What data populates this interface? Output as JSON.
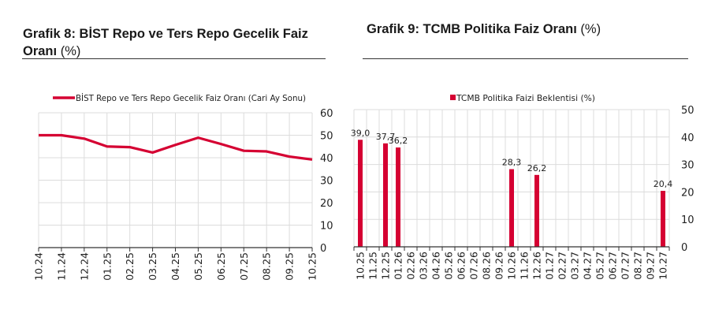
{
  "chart_data": [
    {
      "type": "line",
      "title": "Grafik 8:  BİST Repo ve Ters Repo Gecelik Faiz Oranı",
      "title_unit": "(%)",
      "legend": "BİST Repo ve Ters Repo Gecelik Faiz Oranı (Cari Ay Sonu)",
      "legend_placement": "top-center",
      "categories": [
        "10.24",
        "11.24",
        "12.24",
        "01.25",
        "02.25",
        "03.25",
        "04.25",
        "05.25",
        "06.25",
        "07.25",
        "08.25",
        "09.25",
        "10.25"
      ],
      "series": [
        {
          "name": "BİST Repo ve Ters Repo Gecelik Faiz Oranı (Cari Ay Sonu)",
          "values": [
            50.0,
            50.0,
            48.5,
            45.0,
            44.7,
            42.3,
            45.7,
            48.9,
            46.1,
            43.1,
            42.8,
            40.5,
            39.2
          ]
        }
      ],
      "ylim": [
        0,
        60
      ],
      "yticks": [
        0,
        10,
        20,
        30,
        40,
        50,
        60
      ],
      "grid": true,
      "color": "#d50032"
    },
    {
      "type": "bar",
      "title": "Grafik 9: TCMB Politika Faiz Oranı",
      "title_unit": "(%)",
      "legend": "TCMB Politika Faizi Beklentisi (%)",
      "legend_placement": "top-center",
      "categories": [
        "10.25",
        "11.25",
        "12.25",
        "01.26",
        "02.26",
        "03.26",
        "04.26",
        "05.26",
        "06.26",
        "07.26",
        "08.26",
        "09.26",
        "10.26",
        "11.26",
        "12.26",
        "01.27",
        "02.27",
        "03.27",
        "04.27",
        "05.27",
        "06.27",
        "07.27",
        "08.27",
        "09.27",
        "10.27"
      ],
      "values": [
        39.0,
        null,
        37.7,
        36.2,
        null,
        null,
        null,
        null,
        null,
        null,
        null,
        null,
        28.3,
        null,
        26.2,
        null,
        null,
        null,
        null,
        null,
        null,
        null,
        null,
        null,
        20.4
      ],
      "labels": [
        "39,0",
        null,
        "37,7",
        "36,2",
        null,
        null,
        null,
        null,
        null,
        null,
        null,
        null,
        "28,3",
        null,
        "26,2",
        null,
        null,
        null,
        null,
        null,
        null,
        null,
        null,
        null,
        "20,4"
      ],
      "ylim": [
        0,
        50
      ],
      "yticks": [
        0,
        10,
        20,
        30,
        40,
        50
      ],
      "grid": true,
      "color": "#d50032"
    }
  ]
}
